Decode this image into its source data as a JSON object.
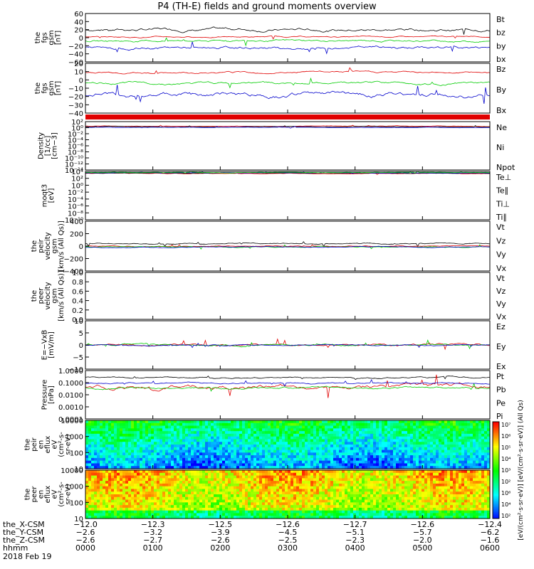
{
  "title": "P4 (TH-E) fields and ground moments overview",
  "colors": {
    "black": "#000000",
    "red": "#e00000",
    "green": "#00cc00",
    "blue": "#0000cc",
    "teal": "#00aaaa"
  },
  "chart_data": [
    {
      "id": "p1",
      "type": "line",
      "ylabel": [
        "the",
        "fgs",
        "gsm",
        "[nT]"
      ],
      "yticks": [
        "60",
        "40",
        "20",
        "0",
        "−20",
        "−40",
        "−60"
      ],
      "ylim": [
        -60,
        60
      ],
      "series": [
        {
          "name": "Bt",
          "color": "#000000",
          "level": 20,
          "amp": 12
        },
        {
          "name": "bz",
          "color": "#e00000",
          "level": 2,
          "amp": 5
        },
        {
          "name": "by",
          "color": "#00cc00",
          "level": -8,
          "amp": 8
        },
        {
          "name": "bx",
          "color": "#0000cc",
          "level": -25,
          "amp": 12
        }
      ]
    },
    {
      "id": "p2",
      "type": "line",
      "ylabel": [
        "the",
        "fgs",
        "gsm",
        "[nT]"
      ],
      "yticks": [
        "20",
        "10",
        "0",
        "−10",
        "−20",
        "−30",
        "−40"
      ],
      "ylim": [
        -45,
        22
      ],
      "series": [
        {
          "name": "Bz",
          "color": "#e00000",
          "level": 10,
          "amp": 4
        },
        {
          "name": "By",
          "color": "#00cc00",
          "level": -5,
          "amp": 5
        },
        {
          "name": "Bx",
          "color": "#0000cc",
          "level": -20,
          "amp": 10
        }
      ]
    },
    {
      "id": "p3",
      "type": "line",
      "ylabel": [
        "Density",
        "[1/cc]",
        "[cm−3]"
      ],
      "yticks": [
        "10²",
        "10⁰",
        "10⁻²",
        "10⁻⁴",
        "10⁻⁶",
        "10⁻⁸",
        "10⁻¹⁰",
        "10⁻¹²",
        "10⁻¹⁴"
      ],
      "ylim": [
        -14,
        2
      ],
      "log": true,
      "series": [
        {
          "name": "Ne",
          "color": "#e00000",
          "level": 0.5,
          "amp": 0.3
        },
        {
          "name": "Ni",
          "color": "#000000",
          "level": 0.3,
          "amp": 0.3
        },
        {
          "name": "Npot",
          "color": "#0000cc",
          "level": 0.1,
          "amp": 0.2
        }
      ]
    },
    {
      "id": "p4",
      "type": "line",
      "ylabel": [
        "moqt3",
        "[eV]"
      ],
      "yticks": [
        "10⁴",
        "10²",
        "10⁰",
        "10⁻²",
        "10⁻⁴",
        "10⁻⁶",
        "10⁻⁸",
        "10⁻¹⁰"
      ],
      "ylim": [
        -10,
        4
      ],
      "log": true,
      "series": [
        {
          "name": "Te⊥",
          "color": "#e00000",
          "level": 3.4,
          "amp": 0.3
        },
        {
          "name": "Te∥",
          "color": "#000000",
          "level": 3.5,
          "amp": 0.2
        },
        {
          "name": "Ti⊥",
          "color": "#0000cc",
          "level": 3.6,
          "amp": 0.2
        },
        {
          "name": "Ti∥",
          "color": "#00cc00",
          "level": 3.7,
          "amp": 0.2
        }
      ]
    },
    {
      "id": "p5",
      "type": "line",
      "ylabel": [
        "the",
        "peir",
        "velocity",
        "gsm",
        "[km/s (All Qs)]"
      ],
      "yticks": [
        "400",
        "200",
        "0",
        "−200",
        "−400"
      ],
      "ylim": [
        -400,
        400
      ],
      "series": [
        {
          "name": "Vt",
          "color": "#000000",
          "level": 40,
          "amp": 30
        },
        {
          "name": "Vz",
          "color": "#e00000",
          "level": 0,
          "amp": 20
        },
        {
          "name": "Vy",
          "color": "#00cc00",
          "level": -10,
          "amp": 25
        },
        {
          "name": "Vx",
          "color": "#0000cc",
          "level": -15,
          "amp": 25
        }
      ]
    },
    {
      "id": "p6",
      "type": "empty",
      "ylabel": [
        "the",
        "peer",
        "velocity",
        "gsm",
        "[km/s (All Qs)]"
      ],
      "yticks": [
        "1.0",
        "0.8",
        "0.6",
        "0.4",
        "0.2",
        "0.0"
      ],
      "ylim": [
        0,
        1
      ],
      "series": [
        {
          "name": "Vt",
          "color": "#000000"
        },
        {
          "name": "Vz",
          "color": "#e00000"
        },
        {
          "name": "Vy",
          "color": "#00cc00"
        },
        {
          "name": "Vx",
          "color": "#0000cc"
        }
      ]
    },
    {
      "id": "p7",
      "type": "line",
      "ylabel": [
        "E=−VxB",
        "[mV/m]"
      ],
      "yticks": [
        "10",
        "5",
        "0",
        "−5",
        "−10"
      ],
      "ylim": [
        -10,
        10
      ],
      "series": [
        {
          "name": "Ez",
          "color": "#e00000",
          "level": 0,
          "amp": 1.5
        },
        {
          "name": "Ey",
          "color": "#00cc00",
          "level": 0,
          "amp": 1.2
        },
        {
          "name": "Ex",
          "color": "#0000cc",
          "level": 0,
          "amp": 0.8
        }
      ]
    },
    {
      "id": "p8",
      "type": "line",
      "ylabel": [
        "Pressure",
        "[nPa]"
      ],
      "yticks": [
        "1.0000",
        "0.1000",
        "0.0100",
        "0.0010",
        "0.0001"
      ],
      "ylim": [
        -4,
        0.2
      ],
      "log": true,
      "series": [
        {
          "name": "Pt",
          "color": "#000000",
          "level": -0.4,
          "amp": 0.2
        },
        {
          "name": "Pb",
          "color": "#e00000",
          "level": -1.2,
          "amp": 0.6
        },
        {
          "name": "Pe",
          "color": "#00cc00",
          "level": -1.3,
          "amp": 0.3
        },
        {
          "name": "Pi",
          "color": "#0000cc",
          "level": -0.9,
          "amp": 0.2
        }
      ]
    },
    {
      "id": "p9",
      "type": "heatmap",
      "ylabel": [
        "the",
        "peir",
        "en",
        "eflux",
        "eV",
        "(cm²-s-",
        "sr-eV)"
      ],
      "yticks": [
        "10000",
        "1000",
        "100",
        "10"
      ],
      "ylim": [
        1,
        4
      ],
      "log": true,
      "base": 0.45
    },
    {
      "id": "p10",
      "type": "heatmap",
      "ylabel": [
        "the",
        "peer",
        "en",
        "eflux",
        "eV",
        "(cm²-s-",
        "sr-eV)"
      ],
      "yticks": [
        "10000",
        "1000",
        "100",
        "10"
      ],
      "ylim": [
        1,
        4
      ],
      "log": true,
      "base": 0.8
    }
  ],
  "colorbar": {
    "ticks": [
      "10⁷",
      "10⁶",
      "10⁵",
      "10⁴",
      "10³",
      "10²",
      "10⁶",
      "10⁴",
      "10²"
    ],
    "label": "[eV/(cm²·s·sr·eV)] [eV/(cm²·s·sr·eV)] (All Qs)"
  },
  "xaxis": {
    "rows": [
      {
        "label": "the_X-CSM",
        "values": [
          "−12.0",
          "−12.3",
          "−12.5",
          "−12.6",
          "−12.7",
          "−12.6",
          "−12.4"
        ]
      },
      {
        "label": "the_Y-CSM",
        "values": [
          "−2.6",
          "−3.2",
          "−3.9",
          "−4.5",
          "−5.1",
          "−5.7",
          "−6.2"
        ]
      },
      {
        "label": "the_Z-CSM",
        "values": [
          "−2.6",
          "−2.7",
          "−2.6",
          "−2.5",
          "−2.3",
          "−2.0",
          "−1.6"
        ]
      },
      {
        "label": "hhmm",
        "values": [
          "0000",
          "0100",
          "0200",
          "0300",
          "0400",
          "0500",
          "0600"
        ]
      }
    ],
    "date": "2018 Feb 19"
  }
}
